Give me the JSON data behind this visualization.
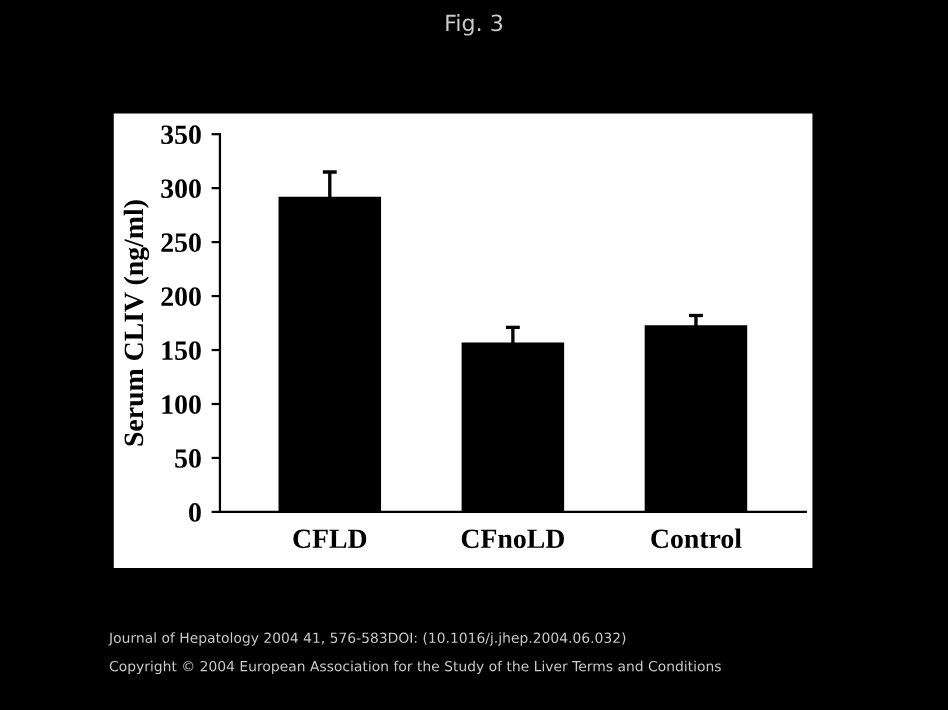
{
  "chart_data": {
    "type": "bar",
    "title": "Fig. 3",
    "ylabel": "Serum CLIV (ng/ml)",
    "categories": [
      "CFLD",
      "CFnoLD",
      "Control"
    ],
    "values": [
      292,
      157,
      173
    ],
    "errors": [
      23,
      14,
      9
    ],
    "color": "#000000",
    "ylim": [
      0,
      350
    ],
    "yticks": [
      0,
      50,
      100,
      150,
      200,
      250,
      300,
      350
    ],
    "grid": false,
    "legend": false,
    "annotations": [
      "Journal of Hepatology 2004 41, 576-583DOI: (10.1016/j.jhep.2004.06.032)",
      "Copyright © 2004 European Association for the Study of the Liver Terms and Conditions"
    ]
  }
}
